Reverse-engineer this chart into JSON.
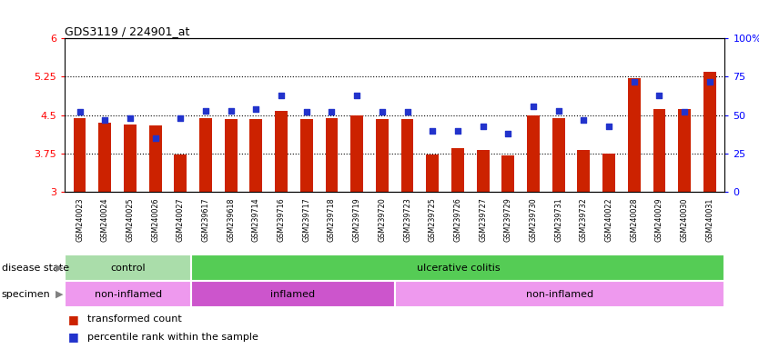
{
  "title": "GDS3119 / 224901_at",
  "samples": [
    "GSM240023",
    "GSM240024",
    "GSM240025",
    "GSM240026",
    "GSM240027",
    "GSM239617",
    "GSM239618",
    "GSM239714",
    "GSM239716",
    "GSM239717",
    "GSM239718",
    "GSM239719",
    "GSM239720",
    "GSM239723",
    "GSM239725",
    "GSM239726",
    "GSM239727",
    "GSM239729",
    "GSM239730",
    "GSM239731",
    "GSM239732",
    "GSM240022",
    "GSM240028",
    "GSM240029",
    "GSM240030",
    "GSM240031"
  ],
  "bar_values": [
    4.45,
    4.35,
    4.32,
    4.3,
    3.73,
    4.45,
    4.42,
    4.42,
    4.58,
    4.42,
    4.45,
    4.5,
    4.42,
    4.42,
    3.73,
    3.85,
    3.82,
    3.72,
    4.5,
    4.44,
    3.82,
    3.75,
    5.22,
    4.62,
    4.62,
    5.35
  ],
  "dot_values": [
    52,
    47,
    48,
    35,
    48,
    53,
    53,
    54,
    63,
    52,
    52,
    63,
    52,
    52,
    40,
    40,
    43,
    38,
    56,
    53,
    47,
    43,
    72,
    63,
    52,
    72
  ],
  "ylim_left": [
    3.0,
    6.0
  ],
  "ylim_right": [
    0,
    100
  ],
  "yticks_left": [
    3.0,
    3.75,
    4.5,
    5.25,
    6.0
  ],
  "ytick_labels_left": [
    "3",
    "3.75",
    "4.5",
    "5.25",
    "6"
  ],
  "yticks_right": [
    0,
    25,
    50,
    75,
    100
  ],
  "ytick_labels_right": [
    "0",
    "25",
    "50",
    "75",
    "100%"
  ],
  "hlines": [
    3.75,
    4.5,
    5.25
  ],
  "bar_color": "#cc2200",
  "dot_color": "#2233cc",
  "disease_state_groups": [
    {
      "label": "control",
      "start": 0,
      "end": 5,
      "color": "#aaddaa"
    },
    {
      "label": "ulcerative colitis",
      "start": 5,
      "end": 26,
      "color": "#55cc55"
    }
  ],
  "specimen_groups": [
    {
      "label": "non-inflamed",
      "start": 0,
      "end": 5,
      "color": "#ee99ee"
    },
    {
      "label": "inflamed",
      "start": 5,
      "end": 13,
      "color": "#cc55cc"
    },
    {
      "label": "non-inflamed",
      "start": 13,
      "end": 26,
      "color": "#ee99ee"
    }
  ],
  "label_disease": "disease state",
  "label_specimen": "specimen",
  "legend_bar": "transformed count",
  "legend_dot": "percentile rank within the sample"
}
